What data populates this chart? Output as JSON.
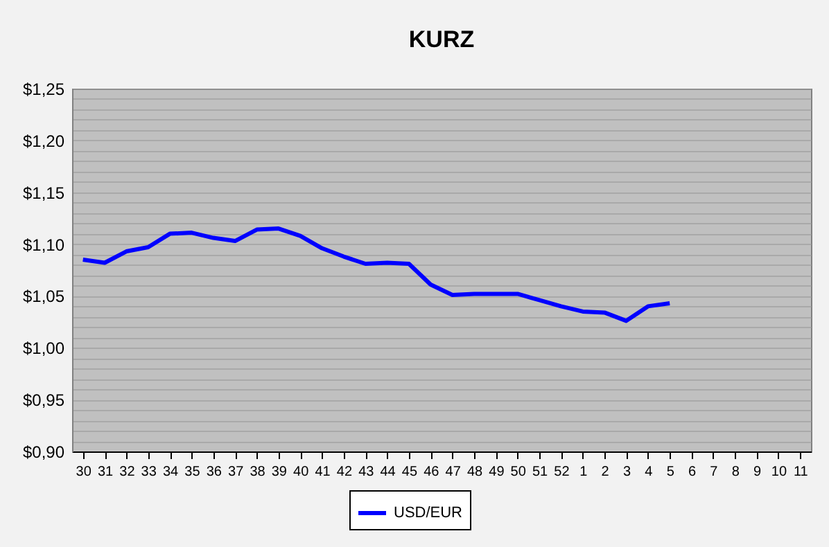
{
  "chart_data": {
    "type": "line",
    "title": "KURZ",
    "categories": [
      "30",
      "31",
      "32",
      "33",
      "34",
      "35",
      "36",
      "37",
      "38",
      "39",
      "40",
      "41",
      "42",
      "43",
      "44",
      "45",
      "46",
      "47",
      "48",
      "49",
      "50",
      "51",
      "52",
      "1",
      "2",
      "3",
      "4",
      "5",
      "6",
      "7",
      "8",
      "9",
      "10",
      "11"
    ],
    "series": [
      {
        "name": "USD/EUR",
        "color": "#0000ff",
        "values": [
          1.085,
          1.082,
          1.093,
          1.097,
          1.11,
          1.111,
          1.106,
          1.103,
          1.114,
          1.115,
          1.108,
          1.096,
          1.088,
          1.081,
          1.082,
          1.081,
          1.061,
          1.051,
          1.052,
          1.052,
          1.052,
          1.046,
          1.04,
          1.035,
          1.034,
          1.026,
          1.04,
          1.043,
          null,
          null,
          null,
          null,
          null,
          null
        ]
      }
    ],
    "ylim": [
      0.9,
      1.25
    ],
    "yticks": [
      {
        "value": 0.9,
        "label": "$0,90"
      },
      {
        "value": 0.91,
        "label": null
      },
      {
        "value": 0.92,
        "label": null
      },
      {
        "value": 0.93,
        "label": null
      },
      {
        "value": 0.94,
        "label": null
      },
      {
        "value": 0.95,
        "label": "$0,95"
      },
      {
        "value": 0.96,
        "label": null
      },
      {
        "value": 0.97,
        "label": null
      },
      {
        "value": 0.98,
        "label": null
      },
      {
        "value": 0.99,
        "label": null
      },
      {
        "value": 1.0,
        "label": "$1,00"
      },
      {
        "value": 1.01,
        "label": null
      },
      {
        "value": 1.02,
        "label": null
      },
      {
        "value": 1.03,
        "label": null
      },
      {
        "value": 1.04,
        "label": null
      },
      {
        "value": 1.05,
        "label": "$1,05"
      },
      {
        "value": 1.06,
        "label": null
      },
      {
        "value": 1.07,
        "label": null
      },
      {
        "value": 1.08,
        "label": null
      },
      {
        "value": 1.09,
        "label": null
      },
      {
        "value": 1.1,
        "label": "$1,10"
      },
      {
        "value": 1.11,
        "label": null
      },
      {
        "value": 1.12,
        "label": null
      },
      {
        "value": 1.13,
        "label": null
      },
      {
        "value": 1.14,
        "label": null
      },
      {
        "value": 1.15,
        "label": "$1,15"
      },
      {
        "value": 1.16,
        "label": null
      },
      {
        "value": 1.17,
        "label": null
      },
      {
        "value": 1.18,
        "label": null
      },
      {
        "value": 1.19,
        "label": null
      },
      {
        "value": 1.2,
        "label": "$1,20"
      },
      {
        "value": 1.21,
        "label": null
      },
      {
        "value": 1.22,
        "label": null
      },
      {
        "value": 1.23,
        "label": null
      },
      {
        "value": 1.24,
        "label": null
      },
      {
        "value": 1.25,
        "label": "$1,25"
      }
    ],
    "grid": "y",
    "legend": "bottom",
    "marker": "none",
    "line_style": "solid"
  }
}
